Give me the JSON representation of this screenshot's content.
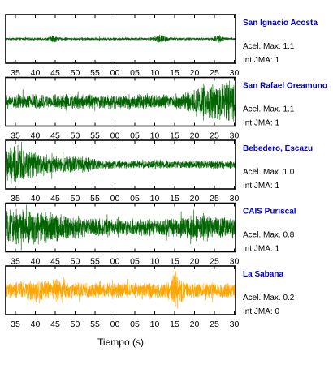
{
  "chart_data": {
    "type": "line",
    "title": "",
    "xlabel": "Tiempo (s)",
    "tick_labels": [
      "35",
      "40",
      "45",
      "50",
      "55",
      "00",
      "05",
      "10",
      "15",
      "20",
      "25",
      "30"
    ],
    "panels": [
      {
        "name": "San Ignacio Acosta",
        "accel_label": "Acel. Max. 1.1",
        "jma_label": "Int JMA: 1",
        "color": "#006400",
        "noise_level": 0.07,
        "events": [
          {
            "t": 31.5,
            "amp": 0.9,
            "width": 0.25
          },
          {
            "t": 11.5,
            "amp": 0.18,
            "width": 1.5
          },
          {
            "t": 44.5,
            "amp": 0.15,
            "width": 1.0
          },
          {
            "t": 26.0,
            "amp": 0.2,
            "width": 1.0
          }
        ]
      },
      {
        "name": "San Rafael Oreamuno",
        "accel_label": "Acel. Max. 1.1",
        "jma_label": "Int JMA: 1",
        "color": "#006400",
        "noise_level": 0.38,
        "events": [
          {
            "t": 24.0,
            "amp": 0.55,
            "width": 5.0
          },
          {
            "t": 31.0,
            "amp": 0.5,
            "width": 4.0
          }
        ]
      },
      {
        "name": "Bebedero, Escazu",
        "accel_label": "Acel. Max. 1.0",
        "jma_label": "Int JMA: 1",
        "color": "#006400",
        "noise_level": 0.2,
        "events": [
          {
            "t": 33.0,
            "amp": 0.85,
            "width": 9.0
          },
          {
            "t": 50.0,
            "amp": 0.25,
            "width": 6.0
          }
        ]
      },
      {
        "name": "CAIS Puriscal",
        "accel_label": "Acel. Max. 0.8",
        "jma_label": "Int JMA: 1",
        "color": "#006400",
        "noise_level": 0.45,
        "events": [
          {
            "t": 36.0,
            "amp": 0.45,
            "width": 12.0
          },
          {
            "t": 22.0,
            "amp": 0.2,
            "width": 6.0
          }
        ]
      },
      {
        "name": "La Sabana",
        "accel_label": "Acel. Max. 0.2",
        "jma_label": "Int JMA: 0",
        "color": "#ffa500",
        "noise_level": 0.42,
        "events": [
          {
            "t": 15.5,
            "amp": 0.5,
            "width": 1.5
          },
          {
            "t": 40.5,
            "amp": 0.25,
            "width": 2.0
          },
          {
            "t": 45.5,
            "amp": 0.2,
            "width": 2.0
          }
        ]
      }
    ]
  }
}
